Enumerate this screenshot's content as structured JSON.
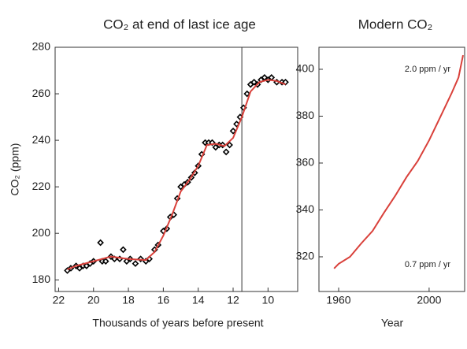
{
  "chart_data": [
    {
      "type": "scatter",
      "title": "CO₂ at end of last ice age",
      "xlabel": "Thousands of years before present",
      "ylabel": "CO₂ (ppm)",
      "xlim": [
        22.2,
        8.3
      ],
      "ylim": [
        175,
        280
      ],
      "xticks": [
        22,
        20,
        18,
        16,
        14,
        12,
        10
      ],
      "yticks": [
        180,
        200,
        220,
        240,
        260,
        280
      ],
      "vline": 11.5,
      "series": [
        {
          "style": "markers",
          "color": "#000000",
          "x": [
            21.5,
            21.3,
            21.0,
            20.8,
            20.6,
            20.4,
            20.2,
            20.0,
            19.6,
            19.5,
            19.3,
            19.0,
            18.8,
            18.5,
            18.3,
            18.1,
            17.9,
            17.6,
            17.3,
            17.0,
            16.8,
            16.5,
            16.3,
            16.0,
            15.8,
            15.6,
            15.4,
            15.2,
            15.0,
            14.8,
            14.6,
            14.4,
            14.2,
            14.0,
            13.8,
            13.6,
            13.4,
            13.2,
            13.0,
            12.8,
            12.6,
            12.4,
            12.2,
            12.0,
            11.8,
            11.6,
            11.4,
            11.2,
            11.0,
            10.8,
            10.6,
            10.4,
            10.2,
            10.0,
            9.8,
            9.5,
            9.2,
            9.0
          ],
          "values": [
            184,
            185,
            186,
            185,
            186,
            186,
            187,
            188,
            196,
            188,
            188,
            190,
            189,
            189,
            193,
            188,
            189,
            187,
            189,
            188,
            189,
            193,
            195,
            201,
            202,
            207,
            208,
            215,
            220,
            221,
            222,
            224,
            226,
            229,
            234,
            239,
            239,
            239,
            237,
            238,
            238,
            235,
            238,
            244,
            247,
            250,
            254,
            260,
            264,
            265,
            264,
            266,
            267,
            266,
            267,
            265,
            265,
            265
          ]
        },
        {
          "style": "line",
          "color": "#d9403a",
          "x": [
            21.5,
            21,
            20,
            19,
            18,
            17,
            16.5,
            16,
            15.5,
            15,
            14.5,
            14,
            13.5,
            13,
            12.5,
            12,
            11.5,
            11,
            10.5,
            10,
            9.5,
            9
          ],
          "values": [
            184.5,
            186,
            188,
            190,
            189,
            188.5,
            192,
            199,
            208,
            218,
            223,
            229,
            238,
            238.5,
            237.5,
            241,
            250,
            261,
            265,
            266,
            265.5,
            264
          ]
        }
      ]
    },
    {
      "type": "line",
      "title": "Modern CO₂",
      "xlabel": "Year",
      "xlim": [
        1951.3,
        2015.7
      ],
      "ylim": [
        305.2,
        409.4
      ],
      "xticks": [
        1960,
        2000
      ],
      "yticks": [
        320,
        340,
        360,
        380,
        400
      ],
      "annotations": [
        "2.0 ppm / yr",
        "0.7 ppm / yr"
      ],
      "series": [
        {
          "style": "line",
          "color": "#d9403a",
          "x": [
            1958,
            1960,
            1965,
            1970,
            1975,
            1980,
            1985,
            1990,
            1995,
            2000,
            2005,
            2010,
            2013,
            2015
          ],
          "values": [
            315,
            317,
            320,
            325.7,
            331,
            338.7,
            346,
            354,
            360.9,
            369.7,
            379.8,
            389.9,
            396.5,
            406
          ]
        }
      ]
    }
  ]
}
